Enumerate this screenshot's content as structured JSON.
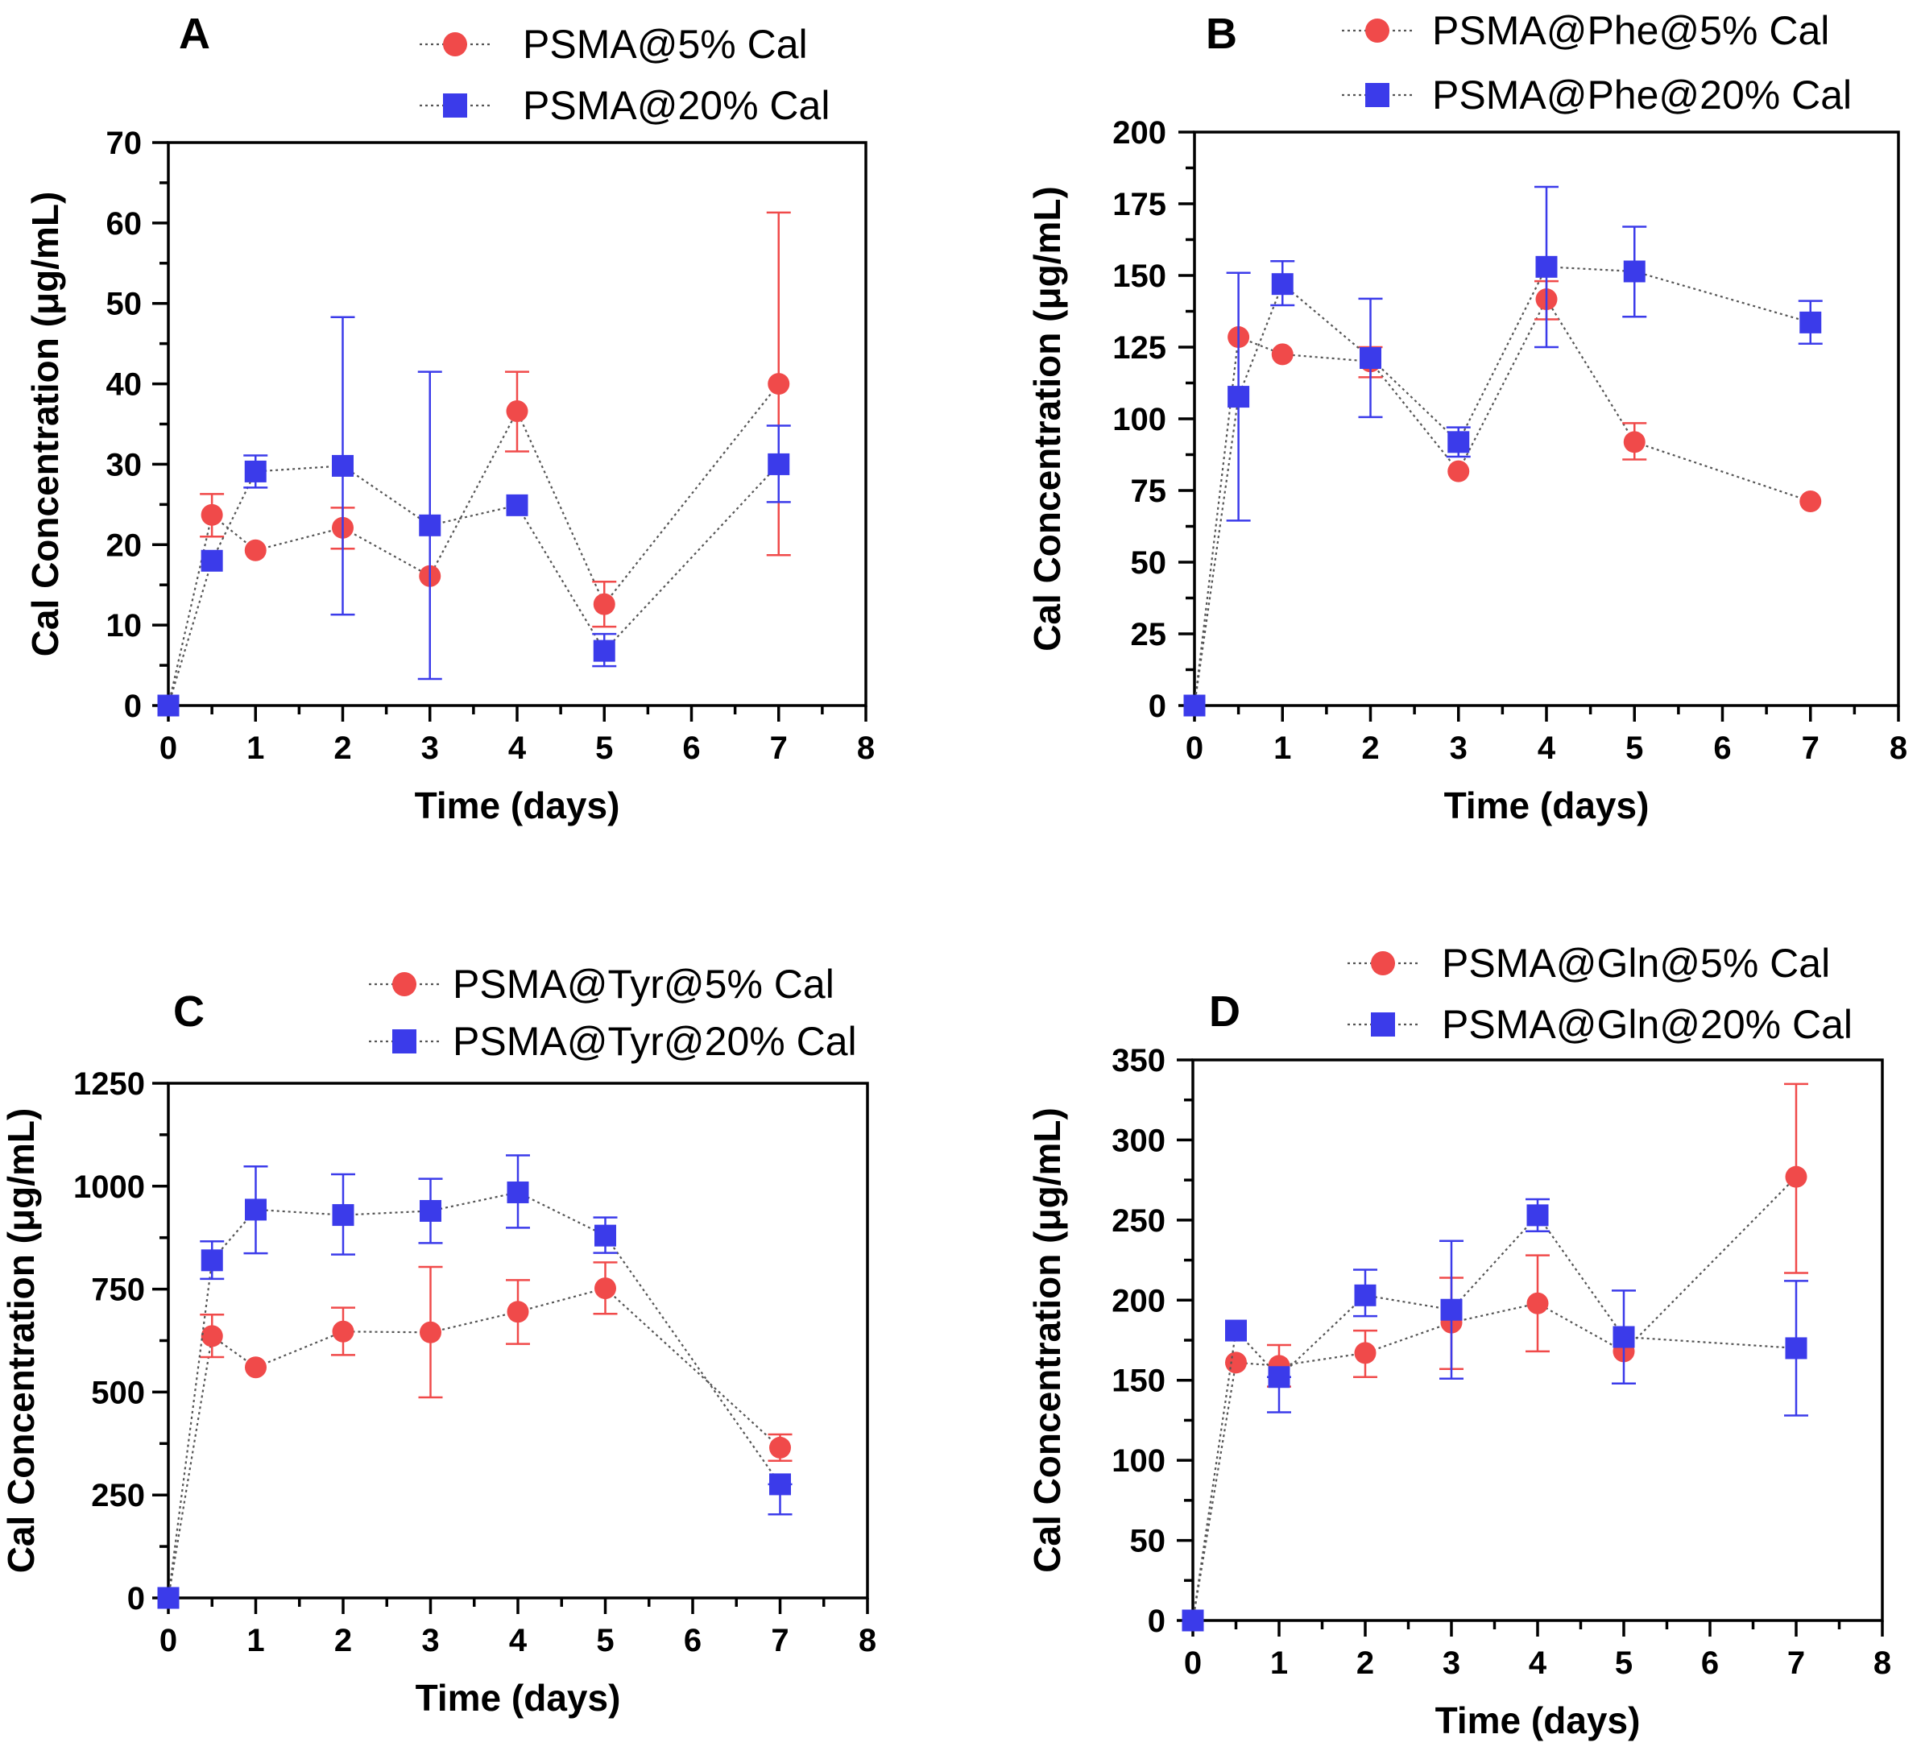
{
  "figure": {
    "colors": {
      "red": "#f04a4a",
      "blue": "#3b3bea",
      "axis": "#000000"
    }
  },
  "chart_data": [
    {
      "type": "line",
      "panel": "A",
      "xlabel": "Time (days)",
      "ylabel": "Cal Concentration (μg/mL)",
      "xlim": [
        0,
        8
      ],
      "ylim": [
        0,
        70
      ],
      "x_ticks": [
        "0",
        "1",
        "2",
        "3",
        "4",
        "5",
        "6",
        "7",
        "8"
      ],
      "y_ticks": [
        "0",
        "10",
        "20",
        "30",
        "40",
        "50",
        "60",
        "70"
      ],
      "x": [
        0,
        0.5,
        1,
        2,
        3,
        4,
        5,
        7
      ],
      "legend_position": "top-right",
      "series": [
        {
          "name": "PSMA@5% Cal",
          "marker": "circle",
          "color": "#f04a4a",
          "values": [
            0,
            23.7,
            19.3,
            22.1,
            16.1,
            36.6,
            12.6,
            40.0
          ],
          "err_upper": [
            0,
            26.3,
            19.3,
            24.6,
            16.1,
            41.5,
            15.4,
            61.3
          ],
          "err_lower": [
            0,
            21.0,
            19.3,
            19.5,
            16.1,
            31.6,
            9.8,
            18.7
          ]
        },
        {
          "name": "PSMA@20% Cal",
          "marker": "square",
          "color": "#3b3bea",
          "values": [
            0,
            18.0,
            29.1,
            29.8,
            22.4,
            24.9,
            6.8,
            30.0
          ],
          "err_upper": [
            0,
            18.0,
            31.1,
            48.3,
            41.5,
            24.9,
            8.9,
            34.8
          ],
          "err_lower": [
            0,
            18.0,
            27.1,
            11.3,
            3.3,
            24.9,
            4.9,
            25.3
          ]
        }
      ]
    },
    {
      "type": "line",
      "panel": "B",
      "xlabel": "Time (days)",
      "ylabel": "Cal Concentration (μg/mL)",
      "xlim": [
        0,
        8
      ],
      "ylim": [
        0,
        200
      ],
      "x_ticks": [
        "0",
        "1",
        "2",
        "3",
        "4",
        "5",
        "6",
        "7",
        "8"
      ],
      "y_ticks": [
        "0",
        "25",
        "50",
        "75",
        "100",
        "125",
        "150",
        "175",
        "200"
      ],
      "x": [
        0,
        0.5,
        1,
        2,
        3,
        4,
        5,
        7
      ],
      "legend_position": "top-right",
      "series": [
        {
          "name": "PSMA@Phe@5% Cal",
          "marker": "circle",
          "color": "#f04a4a",
          "values": [
            0,
            128.5,
            122.5,
            120.0,
            81.7,
            141.7,
            91.9,
            71.2
          ],
          "err_upper": [
            0,
            128.5,
            122.5,
            125.0,
            81.7,
            148.0,
            98.5,
            71.2
          ],
          "err_lower": [
            0,
            128.5,
            122.5,
            114.5,
            81.7,
            134.7,
            85.8,
            71.2
          ]
        },
        {
          "name": "PSMA@Phe@20% Cal",
          "marker": "square",
          "color": "#3b3bea",
          "values": [
            0,
            107.7,
            147.0,
            121.2,
            91.9,
            153.0,
            151.4,
            133.6
          ],
          "err_upper": [
            0,
            150.9,
            155.0,
            141.9,
            97.0,
            180.9,
            167.0,
            141.1
          ],
          "err_lower": [
            0,
            64.5,
            139.6,
            100.6,
            86.8,
            125.0,
            135.6,
            126.2
          ]
        }
      ]
    },
    {
      "type": "line",
      "panel": "C",
      "xlabel": "Time (days)",
      "ylabel": "Cal Concentration (μg/mL)",
      "xlim": [
        0,
        8
      ],
      "ylim": [
        0,
        1250
      ],
      "x_ticks": [
        "0",
        "1",
        "2",
        "3",
        "4",
        "5",
        "6",
        "7",
        "8"
      ],
      "y_ticks": [
        "0",
        "250",
        "500",
        "750",
        "1000",
        "1250"
      ],
      "x": [
        0,
        0.5,
        1,
        2,
        3,
        4,
        5,
        7
      ],
      "legend_position": "top-right",
      "series": [
        {
          "name": "PSMA@Tyr@5% Cal",
          "marker": "circle",
          "color": "#f04a4a",
          "values": [
            0,
            636,
            560,
            647,
            645,
            695,
            752,
            365
          ],
          "err_upper": [
            0,
            688,
            560,
            705,
            804,
            772,
            815,
            397
          ],
          "err_lower": [
            0,
            585,
            560,
            590,
            487,
            617,
            690,
            333
          ]
        },
        {
          "name": "PSMA@Tyr@20% Cal",
          "marker": "square",
          "color": "#3b3bea",
          "values": [
            0,
            820,
            943,
            930,
            940,
            985,
            880,
            276
          ],
          "err_upper": [
            0,
            866,
            1048,
            1029,
            1018,
            1075,
            924,
            276
          ],
          "err_lower": [
            0,
            775,
            837,
            834,
            862,
            899,
            838,
            203
          ]
        }
      ]
    },
    {
      "type": "line",
      "panel": "D",
      "xlabel": "Time (days)",
      "ylabel": "Cal Concentration (μg/mL)",
      "xlim": [
        0,
        8
      ],
      "ylim": [
        0,
        350
      ],
      "x_ticks": [
        "0",
        "1",
        "2",
        "3",
        "4",
        "5",
        "6",
        "7",
        "8"
      ],
      "y_ticks": [
        "0",
        "50",
        "100",
        "150",
        "200",
        "250",
        "300",
        "350"
      ],
      "x": [
        0,
        0.5,
        1,
        2,
        3,
        4,
        5,
        7
      ],
      "legend_position": "top-right",
      "series": [
        {
          "name": "PSMA@Gln@5% Cal",
          "marker": "circle",
          "color": "#f04a4a",
          "values": [
            0,
            161,
            159,
            167,
            186,
            198,
            168,
            277
          ],
          "err_upper": [
            0,
            161,
            172,
            181,
            214,
            228,
            168,
            335
          ],
          "err_lower": [
            0,
            161,
            146,
            152,
            157,
            168,
            168,
            217
          ]
        },
        {
          "name": "PSMA@Gln@20% Cal",
          "marker": "square",
          "color": "#3b3bea",
          "values": [
            0,
            181,
            152,
            203,
            194,
            253,
            177,
            170
          ],
          "err_upper": [
            0,
            181,
            152,
            219,
            237,
            263,
            206,
            212
          ],
          "err_lower": [
            0,
            181,
            130,
            190,
            151,
            243,
            148,
            128
          ]
        }
      ]
    }
  ]
}
